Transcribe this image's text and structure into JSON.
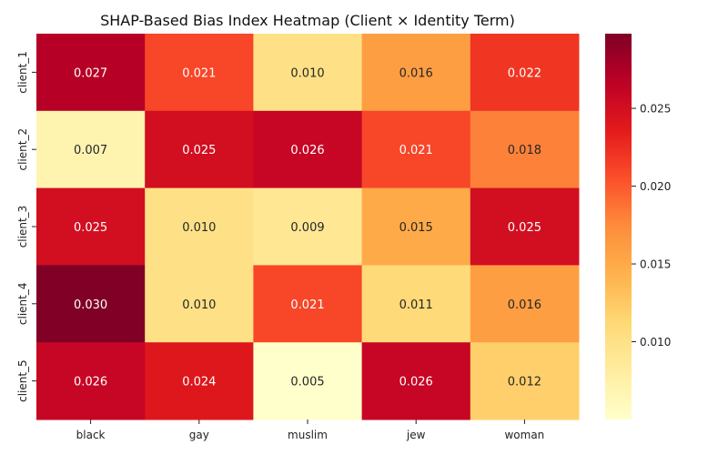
{
  "chart_data": {
    "type": "heatmap",
    "title": "SHAP-Based Bias Index Heatmap (Client × Identity Term)",
    "xlabel": "",
    "ylabel": "",
    "rows": [
      "client_1",
      "client_2",
      "client_3",
      "client_4",
      "client_5"
    ],
    "columns": [
      "black",
      "gay",
      "muslim",
      "jew",
      "woman"
    ],
    "values": [
      [
        0.027,
        0.021,
        0.01,
        0.016,
        0.022
      ],
      [
        0.007,
        0.025,
        0.026,
        0.021,
        0.018
      ],
      [
        0.025,
        0.01,
        0.009,
        0.015,
        0.025
      ],
      [
        0.03,
        0.01,
        0.021,
        0.011,
        0.016
      ],
      [
        0.026,
        0.024,
        0.005,
        0.026,
        0.012
      ]
    ],
    "value_labels": [
      [
        "0.027",
        "0.021",
        "0.010",
        "0.016",
        "0.022"
      ],
      [
        "0.007",
        "0.025",
        "0.026",
        "0.021",
        "0.018"
      ],
      [
        "0.025",
        "0.010",
        "0.009",
        "0.015",
        "0.025"
      ],
      [
        "0.030",
        "0.010",
        "0.021",
        "0.011",
        "0.016"
      ],
      [
        "0.026",
        "0.024",
        "0.005",
        "0.026",
        "0.012"
      ]
    ],
    "colormap": "YlOrRd",
    "color_range": [
      0.005,
      0.0298
    ],
    "colorbar_ticks": [
      0.01,
      0.015,
      0.02,
      0.025
    ],
    "colorbar_tick_labels": [
      "0.010",
      "0.015",
      "0.020",
      "0.025"
    ],
    "colorbar_placement": "right",
    "grid": false
  }
}
